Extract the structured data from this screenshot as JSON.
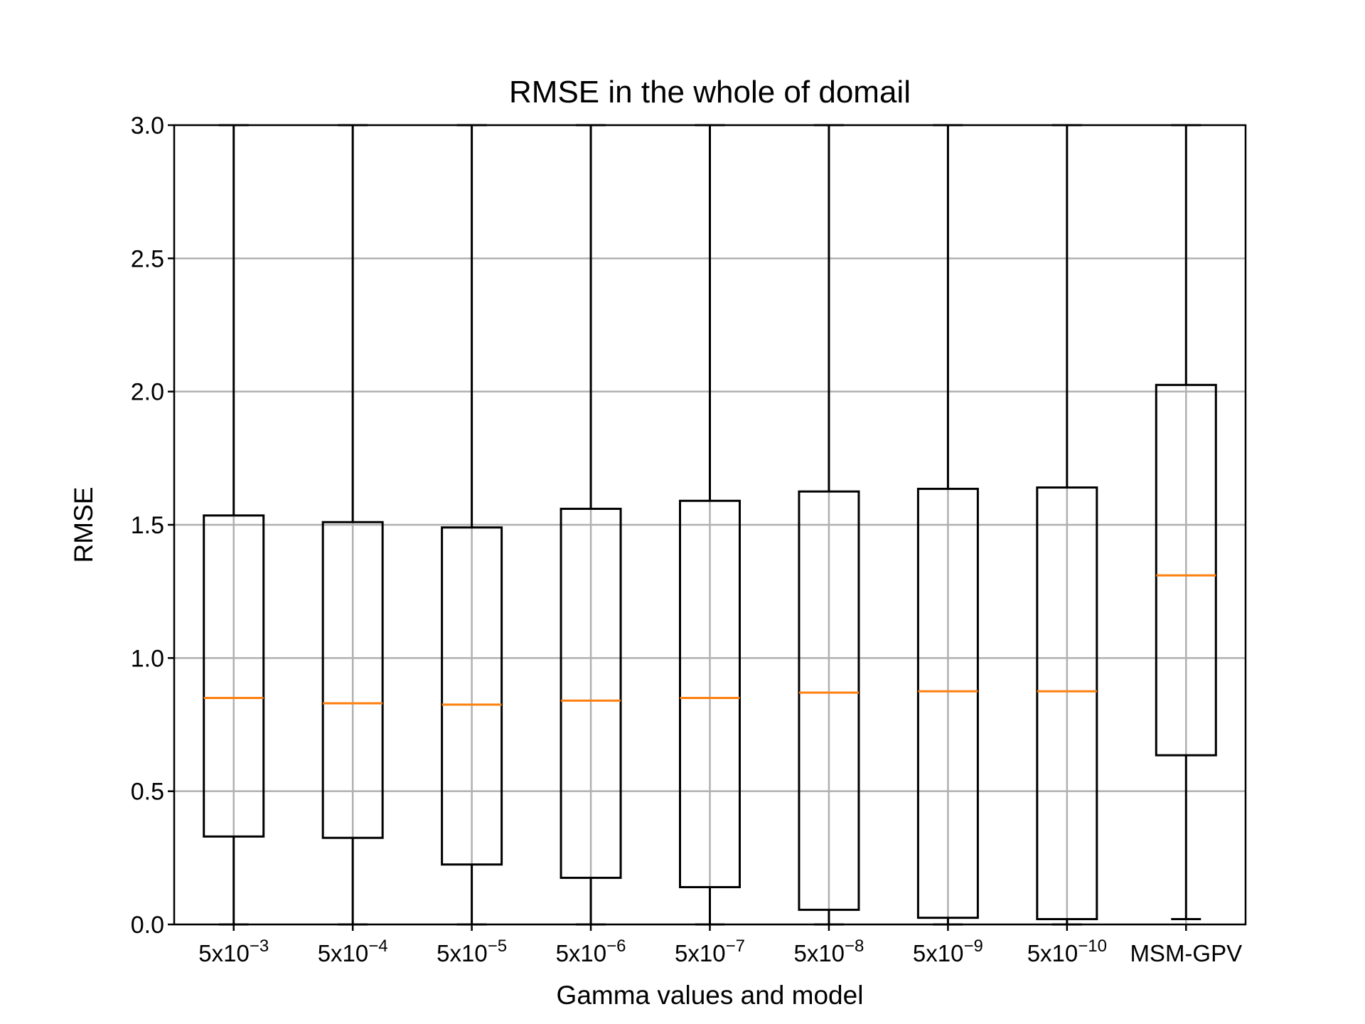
{
  "chart_data": {
    "type": "box",
    "title": "RMSE in the whole of domail",
    "xlabel": "Gamma values and model",
    "ylabel": "RMSE",
    "ylim": [
      0,
      3
    ],
    "yticks": [
      "0.0",
      "0.5",
      "1.0",
      "1.5",
      "2.0",
      "2.5",
      "3.0"
    ],
    "grid": true,
    "categories": [
      {
        "base": "5x10",
        "exp": "−3"
      },
      {
        "base": "5x10",
        "exp": "−4"
      },
      {
        "base": "5x10",
        "exp": "−5"
      },
      {
        "base": "5x10",
        "exp": "−6"
      },
      {
        "base": "5x10",
        "exp": "−7"
      },
      {
        "base": "5x10",
        "exp": "−8"
      },
      {
        "base": "5x10",
        "exp": "−9"
      },
      {
        "base": "5x10",
        "exp": "−10"
      },
      {
        "base": "MSM-GPV",
        "exp": ""
      }
    ],
    "boxes": [
      {
        "whislo": 0.0,
        "q1": 0.33,
        "med": 0.85,
        "q3": 1.535,
        "whishi": 3.0
      },
      {
        "whislo": 0.0,
        "q1": 0.325,
        "med": 0.83,
        "q3": 1.51,
        "whishi": 3.0
      },
      {
        "whislo": 0.0,
        "q1": 0.225,
        "med": 0.825,
        "q3": 1.49,
        "whishi": 3.0
      },
      {
        "whislo": 0.0,
        "q1": 0.175,
        "med": 0.84,
        "q3": 1.56,
        "whishi": 3.0
      },
      {
        "whislo": 0.0,
        "q1": 0.14,
        "med": 0.85,
        "q3": 1.59,
        "whishi": 3.0
      },
      {
        "whislo": 0.0,
        "q1": 0.055,
        "med": 0.87,
        "q3": 1.625,
        "whishi": 3.0
      },
      {
        "whislo": 0.0,
        "q1": 0.025,
        "med": 0.875,
        "q3": 1.635,
        "whishi": 3.0
      },
      {
        "whislo": 0.0,
        "q1": 0.02,
        "med": 0.875,
        "q3": 1.64,
        "whishi": 3.0
      },
      {
        "whislo": 0.02,
        "q1": 0.635,
        "med": 1.31,
        "q3": 2.025,
        "whishi": 3.0
      }
    ],
    "colors": {
      "box": "#000000",
      "median": "#ff7f0e",
      "grid": "#b0b0b0",
      "background": "#ffffff"
    }
  }
}
